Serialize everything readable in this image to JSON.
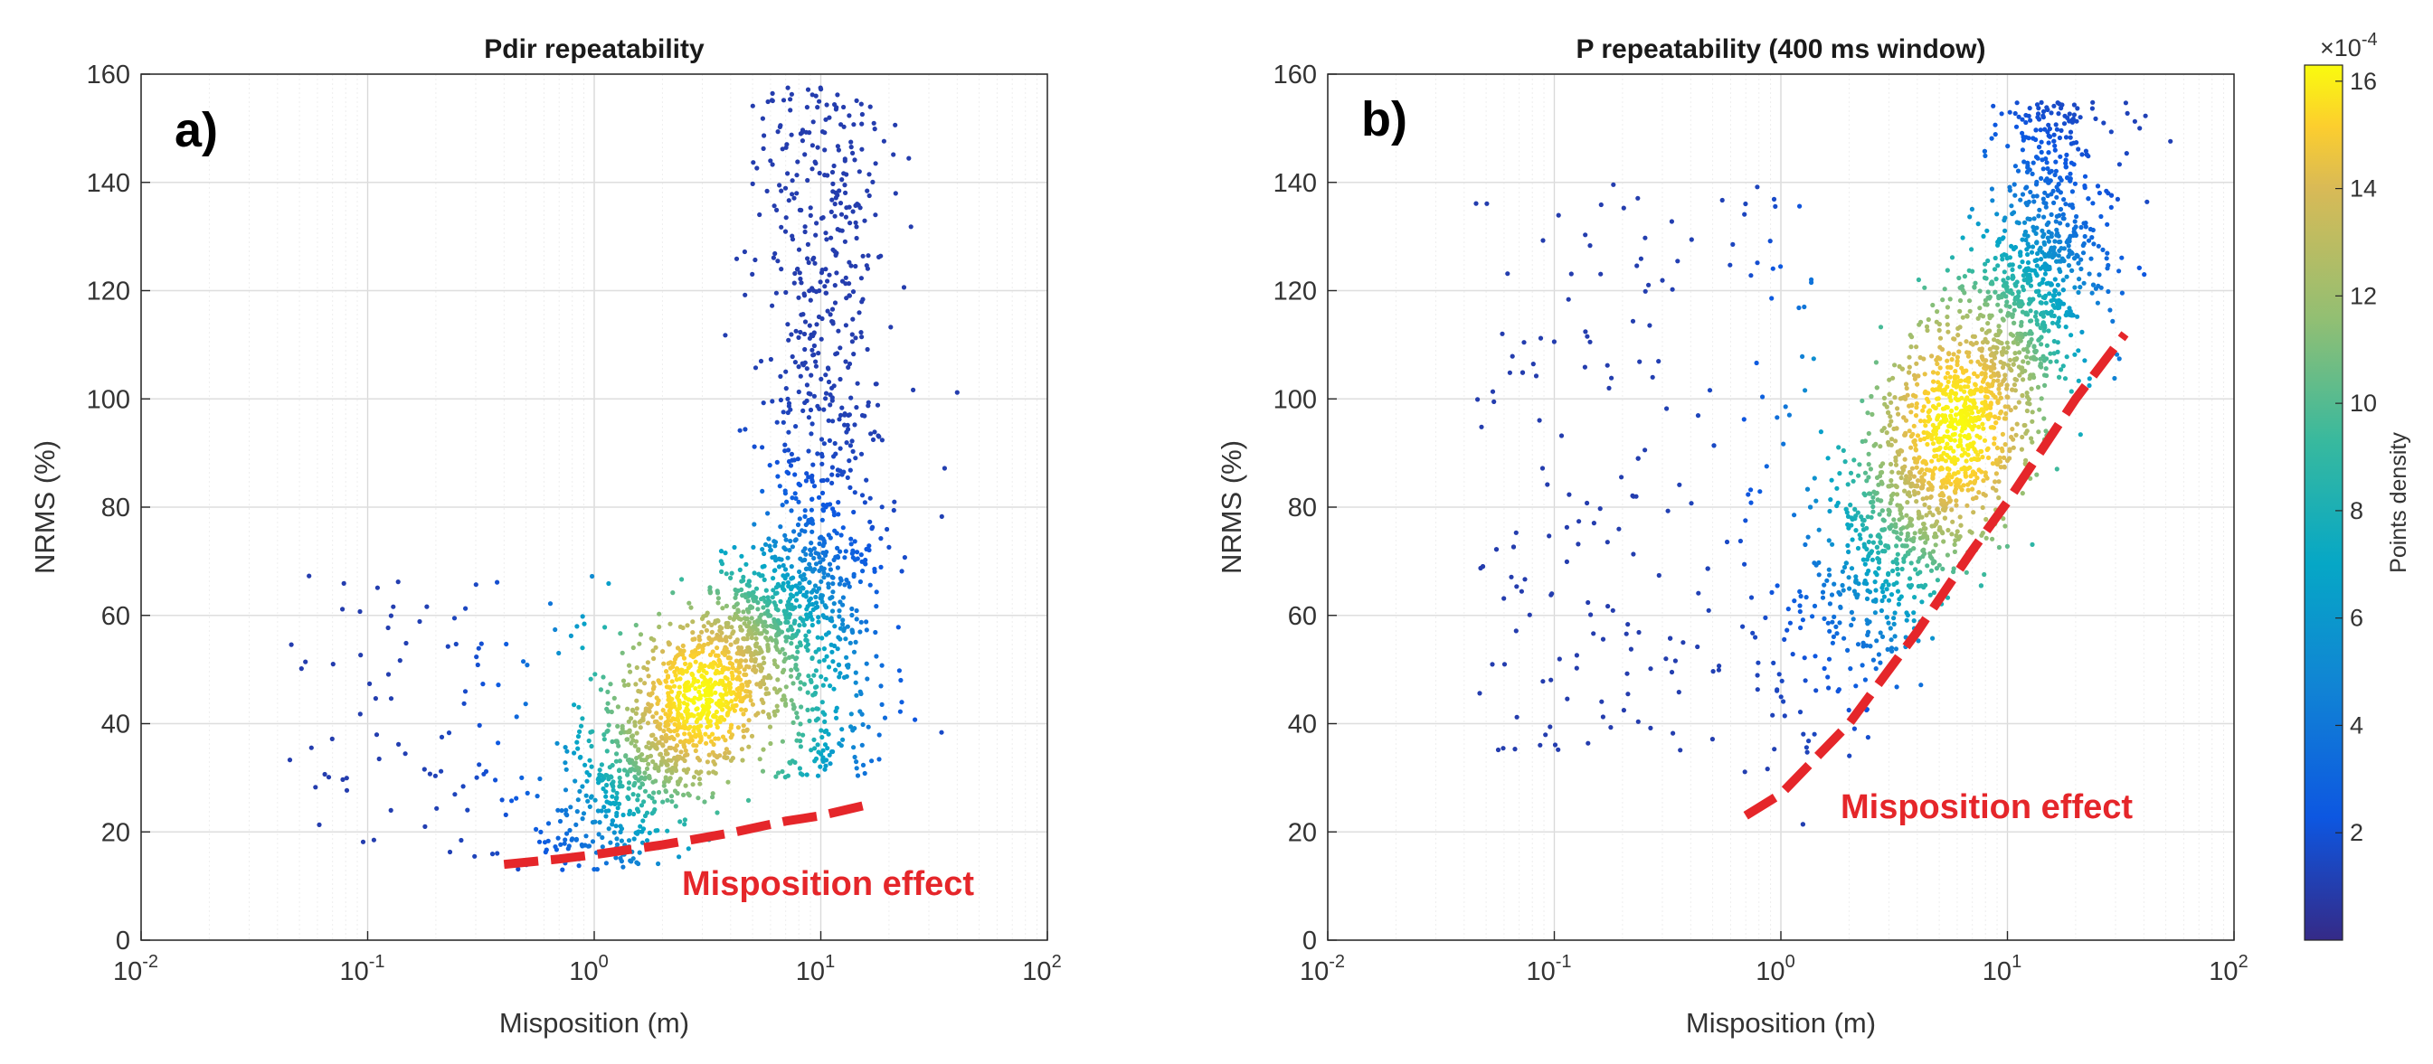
{
  "chart_data": [
    {
      "type": "scatter",
      "panel_label": "a)",
      "title": "Pdir repeatability",
      "xlabel": "Misposition (m)",
      "ylabel": "NRMS (%)",
      "xscale": "log",
      "xlim": [
        0.01,
        100
      ],
      "ylim": [
        0,
        160
      ],
      "x_ticks": [
        "-2",
        "-1",
        "0",
        "1",
        "2"
      ],
      "y_ticks": [
        0,
        20,
        40,
        60,
        80,
        100,
        120,
        140,
        160
      ],
      "grid": true,
      "color_by": "point density",
      "density_core": {
        "x": 3,
        "y": 45
      },
      "annotation": "Misposition effect",
      "trend_line": {
        "style": "dashed",
        "color": "#e5262a",
        "x": [
          0.4,
          0.7,
          1,
          2,
          4,
          7,
          10,
          16
        ],
        "y": [
          14,
          15,
          15.8,
          17.6,
          19.8,
          22,
          23,
          25
        ]
      }
    },
    {
      "type": "scatter",
      "panel_label": "b)",
      "title": "P repeatability (400 ms window)",
      "xlabel": "Misposition (m)",
      "ylabel": "NRMS (%)",
      "xscale": "log",
      "xlim": [
        0.01,
        100
      ],
      "ylim": [
        0,
        160
      ],
      "x_ticks": [
        "-2",
        "-1",
        "0",
        "1",
        "2"
      ],
      "y_ticks": [
        0,
        20,
        40,
        60,
        80,
        100,
        120,
        140,
        160
      ],
      "grid": true,
      "color_by": "point density",
      "density_core": {
        "x": 6,
        "y": 95
      },
      "annotation": "Misposition effect",
      "trend_line": {
        "style": "dashed",
        "color": "#e5262a",
        "x": [
          0.7,
          1,
          2,
          4,
          7,
          10,
          20,
          33
        ],
        "y": [
          23,
          27,
          40,
          57,
          72,
          81,
          100,
          112
        ]
      },
      "colorbar": {
        "label": "Points density",
        "exponent": "-4",
        "range": [
          0,
          16.3
        ],
        "ticks": [
          2,
          4,
          6,
          8,
          10,
          12,
          14,
          16
        ]
      }
    }
  ]
}
